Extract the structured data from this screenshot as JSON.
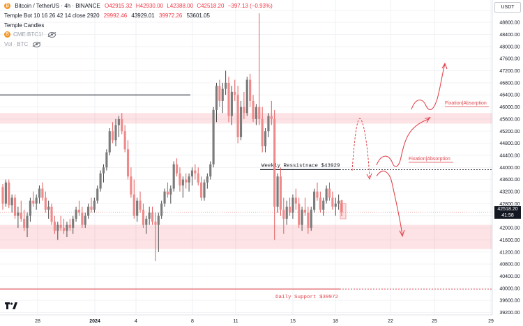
{
  "header": {
    "symbol": "Bitcoin / TetherUS · 4h · BINANCE",
    "ohlc": {
      "open": "O42915.32",
      "high": "H42930.00",
      "low": "L42388.00",
      "close": "C42518.20",
      "change": "−397.13 (−0.93%)"
    },
    "indicator_line": {
      "name": "Temple Bot 10 16 26 42 14 close 2920",
      "v1": "29992.46",
      "v2": "43929.01",
      "v3": "39972.26",
      "v4": "53601.05"
    },
    "temple_candles": "Temple Candles",
    "cme": "CME:BTC1!",
    "cme_icon": "B",
    "vol": "Vol · BTC"
  },
  "currency": "USDT",
  "last_price": {
    "value": "42518.20",
    "timer": "41:58"
  },
  "colors": {
    "down": "#f08a8a",
    "down_dark": "#e35c5c",
    "up": "#7b7b7b",
    "zone": "rgba(242,54,69,0.14)",
    "annotation": "#e0454d"
  },
  "chart_data": {
    "type": "candlestick",
    "title": "",
    "y_range": [
      39200,
      49400
    ],
    "y_ticks": [
      39200,
      39600,
      40000,
      40400,
      40800,
      41200,
      41600,
      42000,
      42400,
      42800,
      43200,
      43600,
      44000,
      44400,
      44800,
      45200,
      45600,
      46000,
      46400,
      46800,
      47200,
      47600,
      48000,
      48400,
      48800,
      49200
    ],
    "x_ticks": [
      "28",
      "2024",
      "4",
      "8",
      "11",
      "15",
      "18",
      "22",
      "25",
      "29"
    ],
    "zones": [
      {
        "from": 45450,
        "to": 45800
      },
      {
        "from": 41300,
        "to": 42100
      }
    ],
    "levels": [
      {
        "price": 43929,
        "label": "Weekly Ressistnace $43929"
      },
      {
        "price": 39972,
        "label": "Daily Support $39972"
      },
      {
        "price": 46400
      }
    ],
    "annotations": [
      "Fixation|Absorption",
      "Fixation|Absorption"
    ],
    "candles": [
      [
        43350,
        43450,
        42600,
        42800
      ],
      [
        42800,
        43600,
        42700,
        43500
      ],
      [
        43500,
        43600,
        42650,
        42750
      ],
      [
        42750,
        43100,
        42500,
        43000
      ],
      [
        43000,
        43100,
        42300,
        42400
      ],
      [
        42400,
        42700,
        42000,
        42500
      ],
      [
        42500,
        42900,
        42200,
        42300
      ],
      [
        42300,
        42600,
        41900,
        42000
      ],
      [
        42000,
        42500,
        41700,
        42400
      ],
      [
        42400,
        43000,
        42200,
        42900
      ],
      [
        42900,
        43200,
        42700,
        42800
      ],
      [
        42800,
        43100,
        42600,
        43000
      ],
      [
        43000,
        43400,
        42800,
        43300
      ],
      [
        43300,
        43500,
        42900,
        43000
      ],
      [
        43000,
        43200,
        42500,
        42600
      ],
      [
        42600,
        42900,
        42300,
        42700
      ],
      [
        42700,
        42800,
        42100,
        42200
      ],
      [
        42200,
        42400,
        41800,
        41900
      ],
      [
        41900,
        42200,
        41600,
        42100
      ],
      [
        42100,
        42400,
        41900,
        42000
      ],
      [
        42000,
        42300,
        41800,
        41900
      ],
      [
        41900,
        42200,
        41700,
        42100
      ],
      [
        42100,
        42300,
        41900,
        42000
      ],
      [
        42000,
        42400,
        41800,
        42300
      ],
      [
        42300,
        42700,
        42200,
        42600
      ],
      [
        42600,
        42900,
        42400,
        42500
      ],
      [
        42500,
        42700,
        42000,
        42100
      ],
      [
        42100,
        42500,
        42000,
        42400
      ],
      [
        42400,
        42800,
        42300,
        42700
      ],
      [
        42700,
        43000,
        42500,
        42600
      ],
      [
        42600,
        43000,
        42500,
        42900
      ],
      [
        42900,
        43400,
        42800,
        43300
      ],
      [
        43300,
        43900,
        43200,
        43800
      ],
      [
        43800,
        44100,
        43500,
        44000
      ],
      [
        44000,
        44600,
        43900,
        44500
      ],
      [
        44500,
        45300,
        44400,
        45200
      ],
      [
        45200,
        45500,
        44800,
        44900
      ],
      [
        44900,
        45600,
        44700,
        45400
      ],
      [
        45400,
        45700,
        45000,
        45600
      ],
      [
        45600,
        45800,
        45100,
        45200
      ],
      [
        45200,
        45400,
        44500,
        44600
      ],
      [
        44600,
        44900,
        43600,
        43700
      ],
      [
        43700,
        44000,
        43000,
        43100
      ],
      [
        43100,
        43600,
        42300,
        42400
      ],
      [
        42400,
        43000,
        42200,
        42900
      ],
      [
        42900,
        43200,
        42500,
        42600
      ],
      [
        42600,
        42800,
        42000,
        42100
      ],
      [
        42100,
        42400,
        41800,
        42300
      ],
      [
        42300,
        42700,
        42100,
        42500
      ],
      [
        42500,
        42700,
        42100,
        42200
      ],
      [
        42200,
        42500,
        40900,
        42100
      ],
      [
        42100,
        42500,
        41200,
        42400
      ],
      [
        42400,
        42900,
        42300,
        42800
      ],
      [
        42800,
        43300,
        42700,
        43200
      ],
      [
        43200,
        43500,
        43000,
        43100
      ],
      [
        43100,
        43400,
        42800,
        43300
      ],
      [
        43300,
        44200,
        43200,
        44100
      ],
      [
        44100,
        44300,
        43700,
        43800
      ],
      [
        43800,
        44000,
        43200,
        43400
      ],
      [
        43400,
        43700,
        43000,
        43600
      ],
      [
        43600,
        43800,
        43300,
        43500
      ],
      [
        43500,
        43800,
        43200,
        43700
      ],
      [
        43700,
        44000,
        43400,
        43900
      ],
      [
        43900,
        44100,
        43600,
        43800
      ],
      [
        43800,
        44000,
        43400,
        43500
      ],
      [
        43500,
        43700,
        42900,
        43000
      ],
      [
        43000,
        43600,
        42900,
        43500
      ],
      [
        43500,
        43800,
        43300,
        43700
      ],
      [
        43700,
        44200,
        43600,
        44100
      ],
      [
        44100,
        46000,
        44000,
        45900
      ],
      [
        45900,
        46800,
        45500,
        46700
      ],
      [
        46700,
        46900,
        46000,
        46200
      ],
      [
        46200,
        46800,
        45800,
        46600
      ],
      [
        46600,
        47200,
        46400,
        46800
      ],
      [
        46800,
        47000,
        45500,
        45700
      ],
      [
        45700,
        46700,
        45400,
        46500
      ],
      [
        46500,
        46900,
        46200,
        46400
      ],
      [
        46400,
        46700,
        44800,
        45000
      ],
      [
        45000,
        46200,
        44900,
        46000
      ],
      [
        46000,
        46500,
        45600,
        45800
      ],
      [
        45800,
        47000,
        45700,
        46900
      ],
      [
        46900,
        47100,
        46000,
        46200
      ],
      [
        46200,
        46400,
        45500,
        45600
      ],
      [
        45600,
        46100,
        45400,
        46000
      ],
      [
        46000,
        49100,
        45400,
        45600
      ],
      [
        45600,
        46000,
        44500,
        44700
      ],
      [
        44700,
        45300,
        44500,
        45200
      ],
      [
        45200,
        45800,
        45000,
        45700
      ],
      [
        45700,
        46200,
        45400,
        45600
      ],
      [
        45600,
        45900,
        41600,
        42700
      ],
      [
        42700,
        43800,
        42500,
        43700
      ],
      [
        43700,
        44000,
        42400,
        42600
      ],
      [
        42600,
        43000,
        41800,
        42300
      ],
      [
        42300,
        42900,
        42100,
        42700
      ],
      [
        42700,
        43000,
        42400,
        42500
      ],
      [
        42500,
        43100,
        42300,
        43000
      ],
      [
        43000,
        43300,
        42600,
        42800
      ],
      [
        42800,
        43000,
        42000,
        42100
      ],
      [
        42100,
        42700,
        41900,
        42600
      ],
      [
        42600,
        43000,
        42400,
        42500
      ],
      [
        42500,
        42700,
        41800,
        42000
      ],
      [
        42000,
        42700,
        41900,
        42600
      ],
      [
        42600,
        43300,
        42500,
        43200
      ],
      [
        43200,
        43500,
        42900,
        43000
      ],
      [
        43000,
        43200,
        42500,
        42600
      ],
      [
        42600,
        43000,
        42400,
        42900
      ],
      [
        42900,
        43400,
        42800,
        43300
      ],
      [
        43300,
        43500,
        42900,
        43000
      ],
      [
        43000,
        43200,
        42600,
        42700
      ],
      [
        42700,
        43000,
        42400,
        42800
      ],
      [
        42800,
        43100,
        42600,
        42900
      ],
      [
        42915.32,
        42930,
        42388,
        42518.2
      ]
    ]
  }
}
